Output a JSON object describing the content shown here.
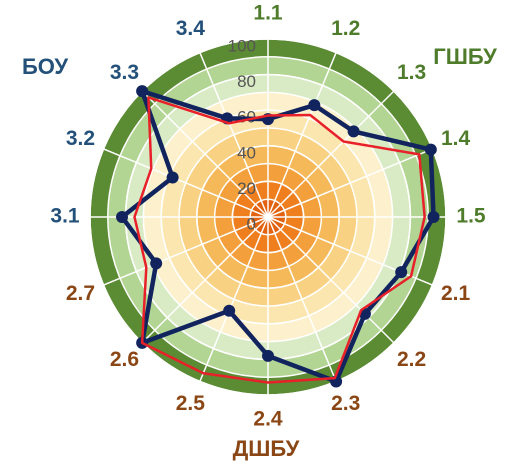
{
  "chart_data": {
    "type": "radar",
    "categories": [
      "1.1",
      "1.2",
      "1.3",
      "1.4",
      "1.5",
      "2.1",
      "2.2",
      "2.3",
      "2.4",
      "2.5",
      "2.6",
      "2.7",
      "3.1",
      "3.2",
      "3.3",
      "3.4"
    ],
    "label_colors": [
      "#4e7c2b",
      "#4e7c2b",
      "#4e7c2b",
      "#4e7c2b",
      "#4e7c2b",
      "#8a4614",
      "#8a4614",
      "#8a4614",
      "#8a4614",
      "#8a4614",
      "#8a4614",
      "#8a4614",
      "#24517a",
      "#24517a",
      "#24517a",
      "#24517a"
    ],
    "series": [
      {
        "color": "#12245e",
        "values": [
          55,
          68,
          68,
          99,
          93,
          81,
          77,
          100,
          78,
          57,
          100,
          68,
          82,
          58,
          100,
          60
        ]
      },
      {
        "color": "#e8202a",
        "values": [
          57,
          62,
          60,
          92,
          88,
          87,
          74,
          98,
          93,
          95,
          100,
          74,
          75,
          71,
          95,
          57
        ]
      }
    ],
    "rlim": [
      0,
      100
    ],
    "rticks": [
      0,
      20,
      40,
      60,
      80,
      100
    ],
    "band_colors": [
      "#e2620f",
      "#ee7e1e",
      "#f3a03c",
      "#f6b95a",
      "#f9d183",
      "#fce6b0",
      "#fdf0cc",
      "#d9ebc4",
      "#b2d594",
      "#5b8b33"
    ],
    "annotations": [
      {
        "text": "ГШБУ",
        "color": "#4e7c2b"
      },
      {
        "text": "БОУ",
        "color": "#24517a"
      },
      {
        "text": "ДШБУ",
        "color": "#8a4614"
      }
    ]
  }
}
